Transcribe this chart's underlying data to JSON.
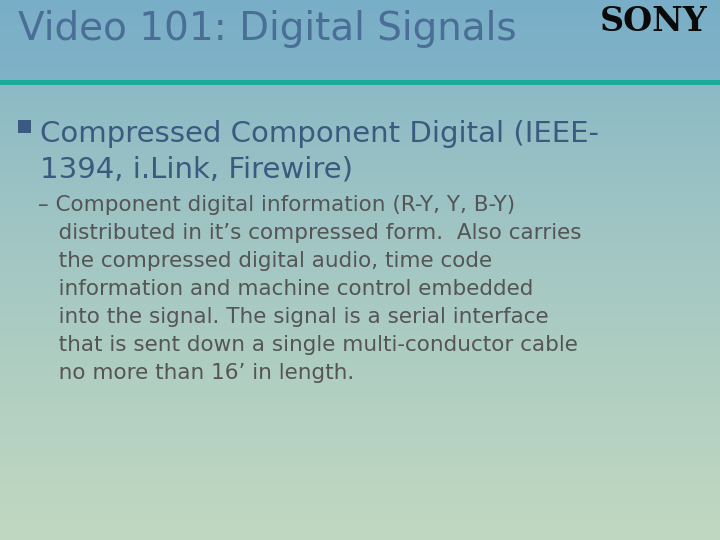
{
  "title": "Video 101: Digital Signals",
  "sony_text": "SONY",
  "bullet_text": "Compressed Component Digital (IEEE-\n1394, i.Link, Firewire)",
  "sub_bullet_line1": "– Component digital information (R-Y, Y, B-Y)",
  "sub_bullet_line2": "   distributed in it’s compressed form.  Also carries",
  "sub_bullet_line3": "   the compressed digital audio, time code",
  "sub_bullet_line4": "   information and machine control embedded",
  "sub_bullet_line5": "   into the signal. The signal is a serial interface",
  "sub_bullet_line6": "   that is sent down a single multi-conductor cable",
  "sub_bullet_line7": "   no more than 16’ in length.",
  "bg_top_color": "#78aec8",
  "bg_bottom_color": "#c0d8c0",
  "header_bg_color": "#78aec8",
  "title_color": "#4a6e96",
  "sony_color": "#0a0a0a",
  "bullet_color": "#3a5a80",
  "sub_bullet_color": "#555555",
  "separator_color": "#1aaa99",
  "bullet_square_color": "#3a5a80",
  "title_fontsize": 28,
  "sony_fontsize": 24,
  "bullet_fontsize": 21,
  "sub_bullet_fontsize": 15.5
}
